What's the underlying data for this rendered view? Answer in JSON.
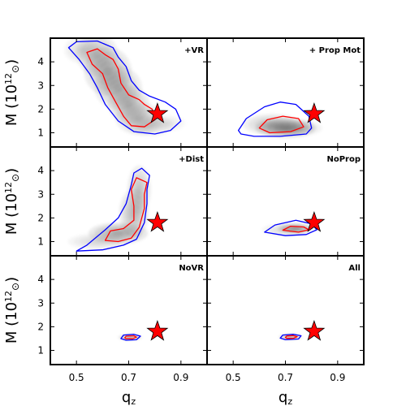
{
  "chart_data": {
    "type": "contour",
    "layout": {
      "rows": 3,
      "cols": 2
    },
    "x": {
      "label": "q",
      "subscript": "z",
      "ticks": [
        0.5,
        0.7,
        0.9
      ],
      "tick_labels": [
        "0.5",
        "0.7",
        "0.9"
      ],
      "range": [
        0.4,
        1.0
      ]
    },
    "y": {
      "label": "M (10",
      "superscript": "12",
      "subscript": "⊙",
      "close": ")",
      "ticks": [
        1,
        2,
        3,
        4
      ],
      "tick_labels": [
        "1",
        "2",
        "3",
        "4"
      ],
      "range": [
        0.4,
        5.0
      ]
    },
    "reference_point": {
      "x": 0.81,
      "y": 1.8,
      "marker": "star",
      "color": "#ff0000"
    },
    "colors": {
      "outer_contour": "#0000ff",
      "inner_contour": "#ff0000",
      "density": "#000000"
    },
    "panels": [
      {
        "label": "+VR",
        "blobs": [
          [
            0.58,
            4.3,
            0.035,
            0.4,
            0.6
          ],
          [
            0.62,
            3.6,
            0.04,
            0.45,
            0.8
          ],
          [
            0.66,
            2.9,
            0.04,
            0.4,
            0.7
          ],
          [
            0.7,
            2.2,
            0.035,
            0.35,
            0.7
          ],
          [
            0.74,
            1.6,
            0.04,
            0.3,
            0.6
          ],
          [
            0.78,
            1.3,
            0.04,
            0.2,
            0.4
          ],
          [
            0.85,
            1.4,
            0.03,
            0.15,
            0.25
          ],
          [
            0.52,
            4.5,
            0.03,
            0.25,
            0.4
          ]
        ],
        "outer": [
          [
            0.47,
            4.6
          ],
          [
            0.5,
            4.85
          ],
          [
            0.58,
            4.88
          ],
          [
            0.64,
            4.6
          ],
          [
            0.66,
            4.2
          ],
          [
            0.69,
            3.8
          ],
          [
            0.71,
            3.2
          ],
          [
            0.74,
            2.8
          ],
          [
            0.78,
            2.55
          ],
          [
            0.84,
            2.3
          ],
          [
            0.88,
            2.0
          ],
          [
            0.9,
            1.5
          ],
          [
            0.86,
            1.1
          ],
          [
            0.8,
            0.95
          ],
          [
            0.72,
            1.05
          ],
          [
            0.66,
            1.5
          ],
          [
            0.61,
            2.2
          ],
          [
            0.58,
            2.9
          ],
          [
            0.55,
            3.5
          ],
          [
            0.51,
            4.1
          ]
        ],
        "inner": [
          [
            0.54,
            4.4
          ],
          [
            0.58,
            4.55
          ],
          [
            0.61,
            4.3
          ],
          [
            0.64,
            4.1
          ],
          [
            0.66,
            3.7
          ],
          [
            0.67,
            3.1
          ],
          [
            0.7,
            2.6
          ],
          [
            0.74,
            2.4
          ],
          [
            0.76,
            2.2
          ],
          [
            0.79,
            2.0
          ],
          [
            0.8,
            1.55
          ],
          [
            0.76,
            1.25
          ],
          [
            0.71,
            1.3
          ],
          [
            0.68,
            1.7
          ],
          [
            0.65,
            2.3
          ],
          [
            0.62,
            2.9
          ],
          [
            0.6,
            3.5
          ],
          [
            0.56,
            3.9
          ]
        ]
      },
      {
        "label": "+ Prop Mot",
        "blobs": [
          [
            0.7,
            1.2,
            0.05,
            0.18,
            1.0
          ],
          [
            0.65,
            1.35,
            0.05,
            0.2,
            0.6
          ],
          [
            0.75,
            1.2,
            0.04,
            0.15,
            0.5
          ]
        ],
        "outer": [
          [
            0.52,
            1.1
          ],
          [
            0.55,
            1.6
          ],
          [
            0.62,
            2.1
          ],
          [
            0.68,
            2.3
          ],
          [
            0.74,
            2.2
          ],
          [
            0.79,
            1.7
          ],
          [
            0.8,
            1.2
          ],
          [
            0.78,
            0.95
          ],
          [
            0.68,
            0.85
          ],
          [
            0.58,
            0.85
          ],
          [
            0.53,
            0.95
          ]
        ],
        "inner": [
          [
            0.6,
            1.2
          ],
          [
            0.63,
            1.55
          ],
          [
            0.69,
            1.7
          ],
          [
            0.75,
            1.6
          ],
          [
            0.77,
            1.25
          ],
          [
            0.72,
            1.05
          ],
          [
            0.64,
            1.0
          ]
        ]
      },
      {
        "label": "+Dist",
        "blobs": [
          [
            0.66,
            1.35,
            0.05,
            0.2,
            0.9
          ],
          [
            0.72,
            2.2,
            0.025,
            0.45,
            0.7
          ],
          [
            0.74,
            3.2,
            0.02,
            0.45,
            0.6
          ],
          [
            0.58,
            1.0,
            0.05,
            0.15,
            0.4
          ]
        ],
        "outer": [
          [
            0.5,
            0.6
          ],
          [
            0.54,
            0.85
          ],
          [
            0.61,
            1.5
          ],
          [
            0.66,
            2.0
          ],
          [
            0.69,
            2.6
          ],
          [
            0.71,
            3.4
          ],
          [
            0.72,
            3.9
          ],
          [
            0.75,
            4.1
          ],
          [
            0.78,
            3.8
          ],
          [
            0.77,
            3.2
          ],
          [
            0.77,
            2.6
          ],
          [
            0.76,
            1.8
          ],
          [
            0.73,
            1.1
          ],
          [
            0.68,
            0.85
          ],
          [
            0.6,
            0.65
          ]
        ],
        "inner": [
          [
            0.61,
            1.05
          ],
          [
            0.63,
            1.45
          ],
          [
            0.68,
            1.55
          ],
          [
            0.72,
            1.9
          ],
          [
            0.72,
            2.5
          ],
          [
            0.71,
            3.2
          ],
          [
            0.73,
            3.7
          ],
          [
            0.77,
            3.5
          ],
          [
            0.76,
            3.0
          ],
          [
            0.76,
            2.4
          ],
          [
            0.74,
            1.6
          ],
          [
            0.71,
            1.15
          ],
          [
            0.66,
            1.0
          ]
        ]
      },
      {
        "label": "NoProp",
        "blobs": [
          [
            0.74,
            1.55,
            0.03,
            0.1,
            1.0
          ],
          [
            0.7,
            1.5,
            0.04,
            0.12,
            0.4
          ]
        ],
        "outer": [
          [
            0.62,
            1.4
          ],
          [
            0.66,
            1.7
          ],
          [
            0.74,
            1.9
          ],
          [
            0.8,
            1.75
          ],
          [
            0.82,
            1.5
          ],
          [
            0.78,
            1.3
          ],
          [
            0.7,
            1.25
          ]
        ],
        "inner": [
          [
            0.69,
            1.48
          ],
          [
            0.72,
            1.65
          ],
          [
            0.77,
            1.62
          ],
          [
            0.79,
            1.5
          ],
          [
            0.75,
            1.4
          ]
        ]
      },
      {
        "label": "NoVR",
        "blobs": [
          [
            0.705,
            1.55,
            0.02,
            0.05,
            1.0
          ]
        ],
        "outer": [
          [
            0.67,
            1.5
          ],
          [
            0.68,
            1.65
          ],
          [
            0.72,
            1.68
          ],
          [
            0.745,
            1.6
          ],
          [
            0.73,
            1.45
          ],
          [
            0.69,
            1.43
          ]
        ],
        "inner": [
          [
            0.685,
            1.53
          ],
          [
            0.69,
            1.6
          ],
          [
            0.72,
            1.62
          ],
          [
            0.73,
            1.56
          ],
          [
            0.715,
            1.49
          ],
          [
            0.69,
            1.49
          ]
        ]
      },
      {
        "label": "All",
        "blobs": [
          [
            0.72,
            1.57,
            0.02,
            0.05,
            1.0
          ]
        ],
        "outer": [
          [
            0.68,
            1.52
          ],
          [
            0.69,
            1.65
          ],
          [
            0.73,
            1.68
          ],
          [
            0.76,
            1.62
          ],
          [
            0.75,
            1.48
          ],
          [
            0.7,
            1.45
          ]
        ],
        "inner": [
          [
            0.7,
            1.55
          ],
          [
            0.705,
            1.61
          ],
          [
            0.73,
            1.63
          ],
          [
            0.745,
            1.58
          ],
          [
            0.73,
            1.51
          ],
          [
            0.705,
            1.51
          ]
        ]
      }
    ]
  }
}
